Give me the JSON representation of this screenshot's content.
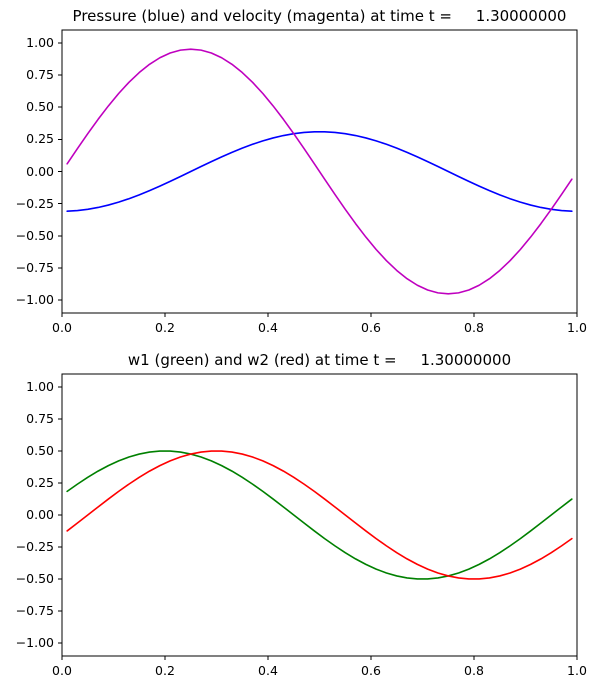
{
  "figure": {
    "background": "#ffffff",
    "frame_color": "#000000",
    "text_color": "#000000"
  },
  "chart_data": [
    {
      "type": "line",
      "title": "Pressure (blue) and velocity (magenta) at time t =     1.30000000",
      "time_value": "1.30000000",
      "xlabel": "",
      "ylabel": "",
      "grid": false,
      "legend_position": "none",
      "xlim": [
        0.0,
        1.0
      ],
      "ylim": [
        -1.1,
        1.1
      ],
      "xtick_values": [
        0.0,
        0.2,
        0.4,
        0.6,
        0.8,
        1.0
      ],
      "xtick_labels": [
        "0.0",
        "0.2",
        "0.4",
        "0.6",
        "0.8",
        "1.0"
      ],
      "ytick_values": [
        1.0,
        0.75,
        0.5,
        0.25,
        0.0,
        -0.25,
        -0.5,
        -0.75,
        -1.0
      ],
      "ytick_labels": [
        "1.00",
        "0.75",
        "0.50",
        "0.25",
        "0.00",
        "−0.25",
        "−0.50",
        "−0.75",
        "−1.00"
      ],
      "x": [
        0.01,
        0.03,
        0.05,
        0.07,
        0.09,
        0.11,
        0.13,
        0.15,
        0.17,
        0.19,
        0.21,
        0.23,
        0.25,
        0.27,
        0.29,
        0.31,
        0.33,
        0.35,
        0.37,
        0.39,
        0.41,
        0.43,
        0.45,
        0.47,
        0.49,
        0.51,
        0.53,
        0.55,
        0.57,
        0.59,
        0.61,
        0.63,
        0.65,
        0.67,
        0.69,
        0.71,
        0.73,
        0.75,
        0.77,
        0.79,
        0.81,
        0.83,
        0.85,
        0.87,
        0.89,
        0.91,
        0.93,
        0.95,
        0.97,
        0.99
      ],
      "series": [
        {
          "name": "pressure",
          "color": "#0000ff",
          "values": [
            -0.3084,
            -0.3035,
            -0.2939,
            -0.2796,
            -0.2609,
            -0.2381,
            -0.2115,
            -0.1816,
            -0.1489,
            -0.1138,
            -0.0769,
            -0.0387,
            0.0,
            0.0387,
            0.0769,
            0.1138,
            0.1489,
            0.1816,
            0.2115,
            0.2381,
            0.2609,
            0.2796,
            0.2939,
            0.3035,
            0.3084,
            0.3084,
            0.3035,
            0.2939,
            0.2796,
            0.2609,
            0.2381,
            0.2115,
            0.1816,
            0.1489,
            0.1138,
            0.0769,
            0.0387,
            0.0,
            -0.0387,
            -0.0769,
            -0.1138,
            -0.1489,
            -0.1816,
            -0.2115,
            -0.2381,
            -0.2609,
            -0.2796,
            -0.2939,
            -0.3035,
            -0.3084
          ]
        },
        {
          "name": "velocity",
          "color": "#bf00bf",
          "values": [
            0.0597,
            0.1782,
            0.2939,
            0.4049,
            0.5096,
            0.6062,
            0.6933,
            0.7694,
            0.8334,
            0.8843,
            0.9212,
            0.9436,
            0.9511,
            0.9436,
            0.9212,
            0.8843,
            0.8334,
            0.7694,
            0.6933,
            0.6062,
            0.5096,
            0.4049,
            0.2939,
            0.1782,
            0.0597,
            -0.0597,
            -0.1782,
            -0.2939,
            -0.4049,
            -0.5096,
            -0.6062,
            -0.6933,
            -0.7694,
            -0.8334,
            -0.8843,
            -0.9212,
            -0.9436,
            -0.9511,
            -0.9436,
            -0.9212,
            -0.8843,
            -0.8334,
            -0.7694,
            -0.6933,
            -0.6062,
            -0.5096,
            -0.4049,
            -0.2939,
            -0.1782,
            -0.0597
          ]
        }
      ]
    },
    {
      "type": "line",
      "title": "w1 (green) and w2 (red) at time t =     1.30000000",
      "time_value": "1.30000000",
      "xlabel": "",
      "ylabel": "",
      "grid": false,
      "legend_position": "none",
      "xlim": [
        0.0,
        1.0
      ],
      "ylim": [
        -1.1,
        1.1
      ],
      "xtick_values": [
        0.0,
        0.2,
        0.4,
        0.6,
        0.8,
        1.0
      ],
      "xtick_labels": [
        "0.0",
        "0.2",
        "0.4",
        "0.6",
        "0.8",
        "1.0"
      ],
      "ytick_values": [
        1.0,
        0.75,
        0.5,
        0.25,
        0.0,
        -0.25,
        -0.5,
        -0.75,
        -1.0
      ],
      "ytick_labels": [
        "1.00",
        "0.75",
        "0.50",
        "0.25",
        "0.00",
        "−0.25",
        "−0.50",
        "−0.75",
        "−1.00"
      ],
      "x": [
        0.01,
        0.03,
        0.05,
        0.07,
        0.09,
        0.11,
        0.13,
        0.15,
        0.17,
        0.19,
        0.21,
        0.23,
        0.25,
        0.27,
        0.29,
        0.31,
        0.33,
        0.35,
        0.37,
        0.39,
        0.41,
        0.43,
        0.45,
        0.47,
        0.49,
        0.51,
        0.53,
        0.55,
        0.57,
        0.59,
        0.61,
        0.63,
        0.65,
        0.67,
        0.69,
        0.71,
        0.73,
        0.75,
        0.77,
        0.79,
        0.81,
        0.83,
        0.85,
        0.87,
        0.89,
        0.91,
        0.93,
        0.95,
        0.97,
        0.99
      ],
      "series": [
        {
          "name": "w1",
          "color": "#008000",
          "values": [
            0.1841,
            0.2409,
            0.2939,
            0.3423,
            0.3853,
            0.4222,
            0.4524,
            0.4755,
            0.4911,
            0.499,
            0.499,
            0.4911,
            0.4755,
            0.4524,
            0.4222,
            0.3853,
            0.3423,
            0.2939,
            0.2409,
            0.1841,
            0.1243,
            0.0627,
            0.0,
            -0.0627,
            -0.1243,
            -0.1841,
            -0.2409,
            -0.2939,
            -0.3423,
            -0.3853,
            -0.4222,
            -0.4524,
            -0.4755,
            -0.4911,
            -0.499,
            -0.499,
            -0.4911,
            -0.4755,
            -0.4524,
            -0.4222,
            -0.3853,
            -0.3423,
            -0.2939,
            -0.2409,
            -0.1841,
            -0.1243,
            -0.0627,
            0.0,
            0.0627,
            0.1243
          ]
        },
        {
          "name": "w2",
          "color": "#ff0000",
          "values": [
            -0.1243,
            -0.0627,
            0.0,
            0.0627,
            0.1243,
            0.1841,
            0.2409,
            0.2939,
            0.3423,
            0.3853,
            0.4222,
            0.4524,
            0.4755,
            0.4911,
            0.499,
            0.499,
            0.4911,
            0.4755,
            0.4524,
            0.4222,
            0.3853,
            0.3423,
            0.2939,
            0.2409,
            0.1841,
            0.1243,
            0.0627,
            0.0,
            -0.0627,
            -0.1243,
            -0.1841,
            -0.2409,
            -0.2939,
            -0.3423,
            -0.3853,
            -0.4222,
            -0.4524,
            -0.4755,
            -0.4911,
            -0.499,
            -0.499,
            -0.4911,
            -0.4755,
            -0.4524,
            -0.4222,
            -0.3853,
            -0.3423,
            -0.2939,
            -0.2409,
            -0.1841
          ]
        }
      ]
    }
  ]
}
